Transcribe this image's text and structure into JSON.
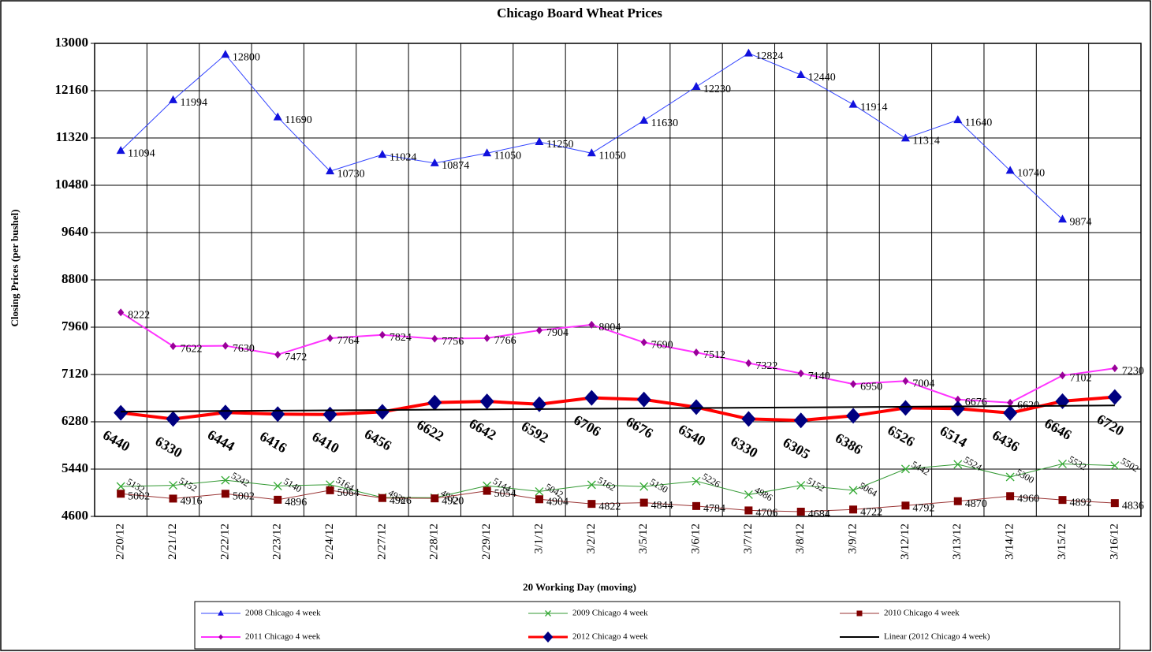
{
  "chart_data": {
    "type": "line",
    "title": "Chicago Board Wheat Prices",
    "x_label": "20 Working Day (moving)",
    "y_label": "Closing Prices (per bushel)",
    "categories": [
      "2/20/12",
      "2/21/12",
      "2/22/12",
      "2/23/12",
      "2/24/12",
      "2/27/12",
      "2/28/12",
      "2/29/12",
      "3/1/12",
      "3/2/12",
      "3/5/12",
      "3/6/12",
      "3/7/12",
      "3/8/12",
      "3/9/12",
      "3/12/12",
      "3/13/12",
      "3/14/12",
      "3/15/12",
      "3/16/12"
    ],
    "ylim": [
      4600,
      13000
    ],
    "yticks": [
      4600,
      5440,
      6280,
      7120,
      7960,
      8800,
      9640,
      10480,
      11320,
      12160,
      13000
    ],
    "grid": true,
    "legend": "bottom",
    "series": [
      {
        "name": "2008 Chicago 4 week",
        "color": "#3344ff",
        "marker": "triangle",
        "marker_color": "#1111dd",
        "line_width": 1,
        "show_labels": true,
        "values": [
          11094,
          11994,
          12800,
          11690,
          10730,
          11024,
          10874,
          11050,
          11250,
          11050,
          11630,
          12230,
          12824,
          12440,
          11914,
          11314,
          11640,
          10740,
          9874,
          null
        ]
      },
      {
        "name": "2009 Chicago 4 week",
        "color": "#339933",
        "marker": "x",
        "marker_color": "#33aa33",
        "line_width": 1,
        "show_labels": true,
        "values": [
          5132,
          5152,
          5242,
          5140,
          5164,
          4936,
          4932,
          5144,
          5042,
          5162,
          5130,
          5226,
          4986,
          5152,
          5064,
          5442,
          5524,
          5300,
          5532,
          5502
        ]
      },
      {
        "name": "2010 Chicago 4 week",
        "color": "#993333",
        "marker": "square",
        "marker_color": "#800000",
        "line_width": 1,
        "show_labels": true,
        "values": [
          5002,
          4916,
          5002,
          4896,
          5064,
          4926,
          4920,
          5054,
          4904,
          4822,
          4844,
          4784,
          4706,
          4684,
          4722,
          4792,
          4870,
          4960,
          4892,
          4836
        ]
      },
      {
        "name": "2011 Chicago 4 week",
        "color": "#ff33ff",
        "marker": "diamond",
        "marker_color": "#990099",
        "line_width": 2,
        "show_labels": true,
        "values": [
          8222,
          7622,
          7630,
          7472,
          7764,
          7824,
          7756,
          7766,
          7904,
          8004,
          7690,
          7512,
          7322,
          7140,
          6950,
          7004,
          6676,
          6620,
          7102,
          7230
        ]
      },
      {
        "name": "2012 Chicago 4 week",
        "color": "#ff0000",
        "marker": "big-diamond",
        "marker_color": "#000080",
        "line_width": 4,
        "show_labels": true,
        "values": [
          6440,
          6330,
          6444,
          6416,
          6410,
          6456,
          6622,
          6642,
          6592,
          6706,
          6676,
          6540,
          6330,
          6305,
          6386,
          6526,
          6514,
          6436,
          6646,
          6720
        ]
      },
      {
        "name": "Linear (2012 Chicago 4 week)",
        "color": "#000000",
        "marker": "none",
        "marker_color": "#000000",
        "line_width": 2,
        "show_labels": false,
        "values": [
          6460,
          6466,
          6472,
          6477,
          6483,
          6489,
          6495,
          6501,
          6506,
          6512,
          6518,
          6524,
          6530,
          6535,
          6541,
          6547,
          6553,
          6559,
          6564,
          6570
        ]
      }
    ]
  }
}
